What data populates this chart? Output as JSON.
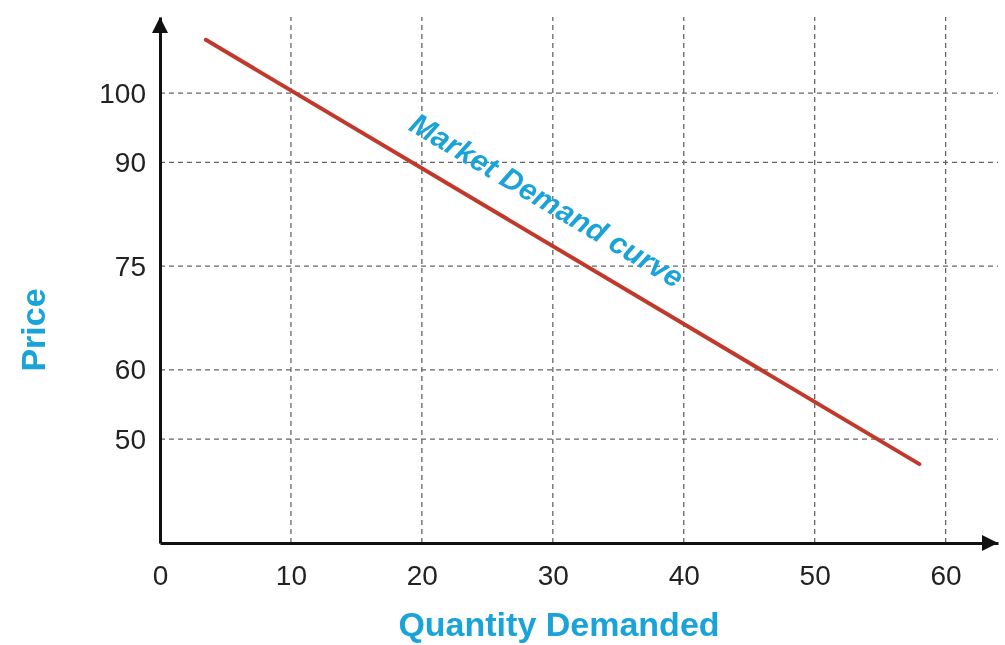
{
  "chart_data": {
    "type": "line",
    "xlabel": "Quantity Demanded",
    "ylabel": "Price",
    "xlim": [
      0,
      64
    ],
    "ylim": [
      35,
      111
    ],
    "xticks": [
      0,
      10,
      20,
      30,
      40,
      50,
      60
    ],
    "yticks": [
      50,
      60,
      75,
      90,
      100
    ],
    "grid": true,
    "marker": "none",
    "line_style": "solid",
    "series": [
      {
        "color": "#c0392b",
        "x": [
          3.5,
          58
        ],
        "values": [
          107.7,
          46.4
        ]
      }
    ],
    "annotations": [
      "Market Demand curve"
    ]
  }
}
